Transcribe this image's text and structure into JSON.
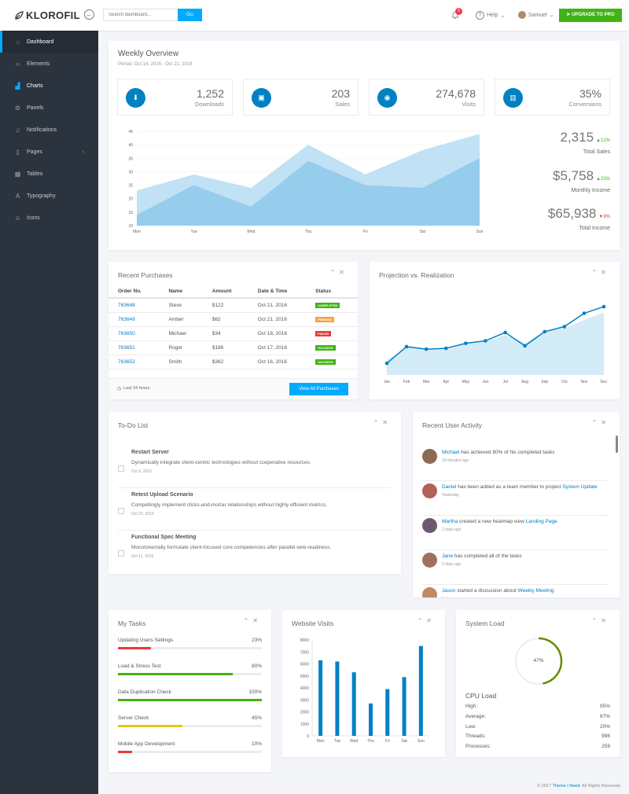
{
  "brand": "KLOROFIL",
  "topbar": {
    "search_placeholder": "Search dashboard...",
    "go_label": "Go",
    "notifications_count": "5",
    "help_label": "Help",
    "user_label": "Samuel",
    "upgrade_label": "UPGRADE TO PRO"
  },
  "sidebar": {
    "items": [
      {
        "label": "Dashboard",
        "icon": "home-icon"
      },
      {
        "label": "Elements",
        "icon": "code-icon"
      },
      {
        "label": "Charts",
        "icon": "chart-icon"
      },
      {
        "label": "Panels",
        "icon": "cog-icon"
      },
      {
        "label": "Notifications",
        "icon": "bell-icon"
      },
      {
        "label": "Pages",
        "icon": "file-icon"
      },
      {
        "label": "Tables",
        "icon": "table-icon"
      },
      {
        "label": "Typography",
        "icon": "text-icon"
      },
      {
        "label": "Icons",
        "icon": "smile-icon"
      }
    ]
  },
  "overview": {
    "title": "Weekly Overview",
    "period": "Period: Oct 14, 2016 - Oct 21, 2016",
    "stats": [
      {
        "value": "1,252",
        "label": "Downloads",
        "icon": "download-icon"
      },
      {
        "value": "203",
        "label": "Sales",
        "icon": "bag-icon"
      },
      {
        "value": "274,678",
        "label": "Visits",
        "icon": "eye-icon"
      },
      {
        "value": "35%",
        "label": "Conversions",
        "icon": "bar-chart-icon"
      }
    ],
    "side": [
      {
        "value": "2,315",
        "change": "12%",
        "direction": "up",
        "label": "Total Sales"
      },
      {
        "value": "$5,758",
        "change": "23%",
        "direction": "up",
        "label": "Monthly Income"
      },
      {
        "value": "$65,938",
        "change": "8%",
        "direction": "down",
        "label": "Total Income"
      }
    ]
  },
  "purchases": {
    "title": "Recent Purchases",
    "headers": [
      "Order No.",
      "Name",
      "Amount",
      "Date & Time",
      "Status"
    ],
    "rows": [
      {
        "order": "763648",
        "name": "Steve",
        "amount": "$122",
        "date": "Oct 21, 2016",
        "status": "COMPLETED",
        "color": "#41b314"
      },
      {
        "order": "763649",
        "name": "Amber",
        "amount": "$62",
        "date": "Oct 21, 2016",
        "status": "PENDING",
        "color": "#f9a03f"
      },
      {
        "order": "763650",
        "name": "Michael",
        "amount": "$34",
        "date": "Oct 18, 2016",
        "status": "FAILED",
        "color": "#e83a3a"
      },
      {
        "order": "763651",
        "name": "Roger",
        "amount": "$186",
        "date": "Oct 17, 2016",
        "status": "SUCCESS",
        "color": "#41b314"
      },
      {
        "order": "763652",
        "name": "Smith",
        "amount": "$362",
        "date": "Oct 16, 2016",
        "status": "SUCCESS",
        "color": "#41b314"
      }
    ],
    "footer_time": "Last 24 hours",
    "button": "View All Purchases"
  },
  "projection": {
    "title": "Projection vs. Realization"
  },
  "todo": {
    "title": "To-Do List",
    "items": [
      {
        "title": "Restart Server",
        "desc": "Dynamically integrate client-centric technologies without cooperative resources.",
        "date": "Oct 9, 2016"
      },
      {
        "title": "Retest Upload Scenario",
        "desc": "Compellingly implement clicks-and-mortar relationships without highly efficient metrics.",
        "date": "Oct 23, 2016"
      },
      {
        "title": "Functional Spec Meeting",
        "desc": "Monotonectally formulate client-focused core competencies after parallel web-readiness.",
        "date": "Oct 11, 2016"
      }
    ]
  },
  "activity": {
    "title": "Recent User Activity",
    "items": [
      {
        "user": "Michael",
        "text": " has achieved 80% of his completed tasks",
        "link": "",
        "time": "20 minutes ago"
      },
      {
        "user": "Daniel",
        "text": " has been added as a team member to project ",
        "link": "System Update",
        "time": "Yesterday"
      },
      {
        "user": "Martha",
        "text": " created a new heatmap view ",
        "link": "Landing Page",
        "time": "2 days ago"
      },
      {
        "user": "Jane",
        "text": " has completed all of the tasks",
        "link": "",
        "time": "2 days ago"
      },
      {
        "user": "Jason",
        "text": " started a discussion about ",
        "link": "Weekly Meeting",
        "time": "3 days ago"
      }
    ]
  },
  "tasks": {
    "title": "My Tasks",
    "items": [
      {
        "name": "Updating Users Settings",
        "pct": "23%",
        "value": 0.23,
        "color": "#e83a3a"
      },
      {
        "name": "Load & Stress Test",
        "pct": "80%",
        "value": 0.8,
        "color": "#41b314"
      },
      {
        "name": "Data Duplication Check",
        "pct": "100%",
        "value": 1.0,
        "color": "#41b314"
      },
      {
        "name": "Server Check",
        "pct": "45%",
        "value": 0.45,
        "color": "#e6c619"
      },
      {
        "name": "Mobile App Development",
        "pct": "10%",
        "value": 0.1,
        "color": "#e83a3a"
      }
    ]
  },
  "visits": {
    "title": "Website Visits"
  },
  "sysload": {
    "title": "System Load",
    "gauge_label": "47%",
    "gauge_value": 0.47,
    "cpu_title": "CPU Load",
    "rows": [
      {
        "label": "High:",
        "value": "95%"
      },
      {
        "label": "Average:",
        "value": "87%"
      },
      {
        "label": "Low:",
        "value": "20%"
      },
      {
        "label": "Threads:",
        "value": "996"
      },
      {
        "label": "Processes:",
        "value": "259"
      }
    ]
  },
  "footer": {
    "pre": "© 2017 ",
    "link": "Theme I Need",
    "post": ". All Rights Reserved."
  },
  "chart_data": [
    {
      "type": "area",
      "categories": [
        "Mon",
        "Tue",
        "Wed",
        "Thu",
        "Fri",
        "Sat",
        "Sun"
      ],
      "ylim": [
        10,
        45
      ],
      "yticks": [
        10,
        15,
        20,
        25,
        30,
        35,
        40,
        45
      ],
      "series": [
        {
          "values": [
            23,
            29,
            24,
            40,
            29,
            38,
            44
          ],
          "color": "#b6dcf2"
        },
        {
          "values": [
            14,
            25,
            17,
            34,
            25,
            24,
            35
          ],
          "color": "#8ec8ea"
        }
      ]
    },
    {
      "type": "line",
      "categories": [
        "Jan",
        "Feb",
        "Mar",
        "Apr",
        "May",
        "Jun",
        "Jul",
        "Aug",
        "Sep",
        "Oct",
        "Nov",
        "Dec"
      ],
      "ylim": [
        0,
        100
      ],
      "series": [
        {
          "values": [
            18,
            33,
            32,
            30,
            37,
            40,
            48,
            38,
            52,
            56,
            66,
            75
          ],
          "type": "area",
          "color": "#d4ebf8"
        },
        {
          "values": [
            14,
            34,
            31,
            32,
            38,
            41,
            51,
            35,
            52,
            58,
            74,
            82
          ],
          "type": "line",
          "color": "#0081c2"
        }
      ]
    },
    {
      "type": "bar",
      "categories": [
        "Mon",
        "Tue",
        "Wed",
        "Thu",
        "Fri",
        "Sat",
        "Sun"
      ],
      "values": [
        6300,
        6200,
        5300,
        2700,
        3900,
        4900,
        7500
      ],
      "ylim": [
        0,
        8000
      ],
      "yticks": [
        0,
        1000,
        2000,
        3000,
        4000,
        5000,
        6000,
        7000,
        8000
      ]
    }
  ]
}
